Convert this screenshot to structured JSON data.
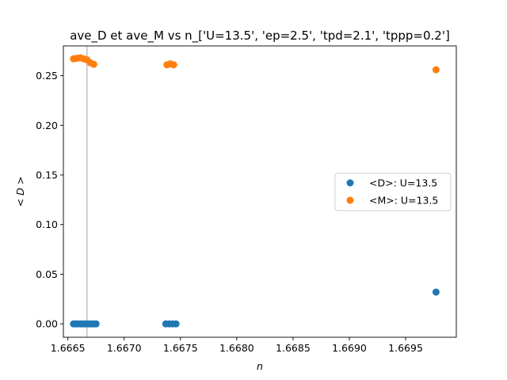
{
  "chart_data": {
    "type": "scatter",
    "title": "ave_D et ave_M vs n_['U=13.5', 'ep=2.5', 'tpd=2.1', 'tppp=0.2']",
    "xlabel": "n",
    "ylabel": "< D >",
    "xlim": [
      1.66646,
      1.66995
    ],
    "ylim": [
      -0.0135,
      0.28
    ],
    "x_ticks": [
      "1.6665",
      "1.6670",
      "1.6675",
      "1.6680",
      "1.6685",
      "1.6690",
      "1.6695"
    ],
    "x_tick_values": [
      1.6665,
      1.667,
      1.6675,
      1.668,
      1.6685,
      1.669,
      1.6695
    ],
    "y_ticks": [
      "0.00",
      "0.05",
      "0.10",
      "0.15",
      "0.20",
      "0.25"
    ],
    "y_tick_values": [
      0.0,
      0.05,
      0.1,
      0.15,
      0.2,
      0.25
    ],
    "vline_x": 1.66667,
    "grid": false,
    "legend_position": "center right",
    "series": [
      {
        "name": "<D>: U=13.5",
        "color": "#1f77b4",
        "points": [
          [
            1.66655,
            0.0
          ],
          [
            1.66657,
            0.0
          ],
          [
            1.66659,
            0.0
          ],
          [
            1.66661,
            0.0
          ],
          [
            1.66663,
            0.0
          ],
          [
            1.66665,
            0.0
          ],
          [
            1.66667,
            0.0
          ],
          [
            1.66669,
            0.0
          ],
          [
            1.66671,
            0.0
          ],
          [
            1.66673,
            0.0
          ],
          [
            1.66675,
            0.0
          ],
          [
            1.66737,
            0.0
          ],
          [
            1.6674,
            0.0
          ],
          [
            1.66743,
            0.0
          ],
          [
            1.66746,
            0.0
          ],
          [
            1.66977,
            0.032
          ]
        ]
      },
      {
        "name": "<M>: U=13.5",
        "color": "#ff7f0e",
        "points": [
          [
            1.66655,
            0.267
          ],
          [
            1.66658,
            0.2675
          ],
          [
            1.66661,
            0.268
          ],
          [
            1.66664,
            0.267
          ],
          [
            1.66667,
            0.266
          ],
          [
            1.6667,
            0.263
          ],
          [
            1.66673,
            0.2615
          ],
          [
            1.66738,
            0.261
          ],
          [
            1.66741,
            0.262
          ],
          [
            1.66744,
            0.261
          ],
          [
            1.66977,
            0.256
          ]
        ]
      }
    ]
  }
}
